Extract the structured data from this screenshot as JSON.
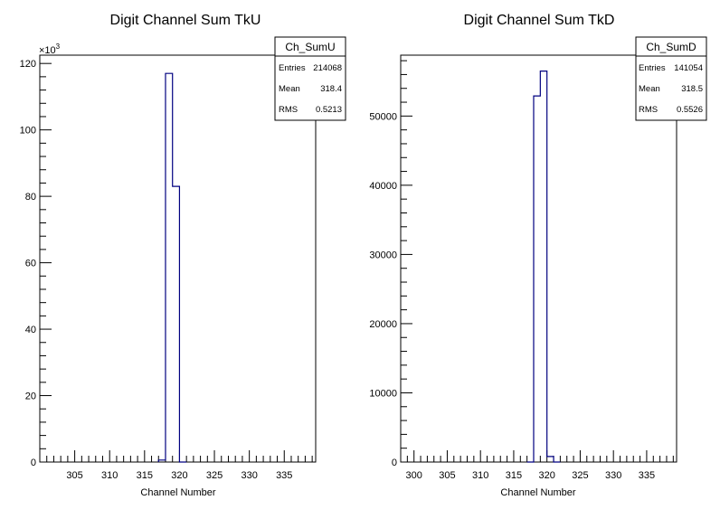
{
  "chart_data": [
    {
      "type": "bar",
      "title": "Digit Channel Sum TkU",
      "xlabel": "Channel Number",
      "ylabel": "",
      "xlim": [
        300,
        339.5
      ],
      "ylim": [
        0,
        122.5
      ],
      "y_exponent_label": "×10",
      "y_exponent_power": "3",
      "x_ticks": [
        305,
        310,
        315,
        320,
        325,
        330,
        335
      ],
      "x_tick_labels": [
        "305",
        "310",
        "315",
        "320",
        "325",
        "330",
        "335"
      ],
      "y_ticks": [
        0,
        20,
        40,
        60,
        80,
        100,
        120
      ],
      "y_tick_labels": [
        "0",
        "20",
        "40",
        "60",
        "80",
        "100",
        "120"
      ],
      "bins": [
        {
          "x0": 317,
          "x1": 318,
          "y": 0.6
        },
        {
          "x0": 318,
          "x1": 319,
          "y": 117
        },
        {
          "x0": 319,
          "x1": 320,
          "y": 83
        },
        {
          "x0": 320,
          "x1": 321,
          "y": 0
        }
      ],
      "stats": {
        "name": "Ch_SumU",
        "rows": [
          {
            "label": "Entries",
            "value": "214068"
          },
          {
            "label": "Mean",
            "value": "318.4"
          },
          {
            "label": "RMS",
            "value": "0.5213"
          }
        ]
      },
      "line_color": "#000080"
    },
    {
      "type": "bar",
      "title": "Digit Channel Sum TkD",
      "xlabel": "Channel Number",
      "ylabel": "",
      "xlim": [
        298,
        339.5
      ],
      "ylim": [
        0,
        58800
      ],
      "x_ticks": [
        300,
        305,
        310,
        315,
        320,
        325,
        330,
        335
      ],
      "x_tick_labels": [
        "300",
        "305",
        "310",
        "315",
        "320",
        "325",
        "330",
        "335"
      ],
      "y_ticks": [
        0,
        10000,
        20000,
        30000,
        40000,
        50000
      ],
      "y_tick_labels": [
        "0",
        "10000",
        "20000",
        "30000",
        "40000",
        "50000"
      ],
      "bins": [
        {
          "x0": 317,
          "x1": 318,
          "y": 0
        },
        {
          "x0": 318,
          "x1": 319,
          "y": 52900
        },
        {
          "x0": 319,
          "x1": 320,
          "y": 56500
        },
        {
          "x0": 320,
          "x1": 321,
          "y": 800
        },
        {
          "x0": 321,
          "x1": 322,
          "y": 0
        }
      ],
      "stats": {
        "name": "Ch_SumD",
        "rows": [
          {
            "label": "Entries",
            "value": "141054"
          },
          {
            "label": "Mean",
            "value": "318.5"
          },
          {
            "label": "RMS",
            "value": "0.5526"
          }
        ]
      },
      "line_color": "#000080"
    }
  ]
}
